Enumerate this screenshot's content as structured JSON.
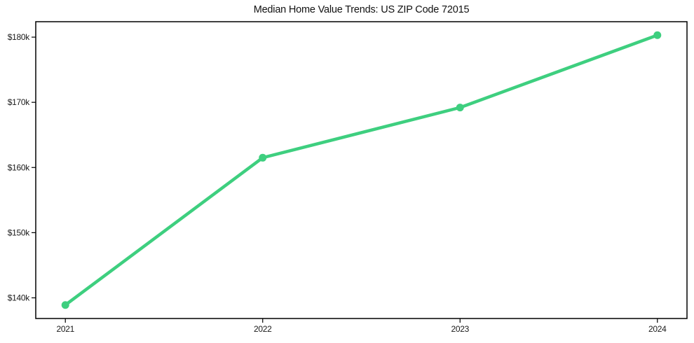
{
  "chart_data": {
    "type": "line",
    "title": "Median Home Value Trends: US ZIP Code 72015",
    "xlabel": "",
    "ylabel": "",
    "x": [
      2021,
      2022,
      2023,
      2024
    ],
    "x_tick_labels": [
      "2021",
      "2022",
      "2023",
      "2024"
    ],
    "series": [
      {
        "name": "median-home-value",
        "values": [
          138900,
          161500,
          169200,
          180300
        ],
        "color": "#3ecf7f",
        "marker": "circle"
      }
    ],
    "y_ticks": [
      {
        "value": 140000,
        "label": "$140k"
      },
      {
        "value": 150000,
        "label": "$150k"
      },
      {
        "value": 160000,
        "label": "$160k"
      },
      {
        "value": 170000,
        "label": "$170k"
      },
      {
        "value": 180000,
        "label": "$180k"
      }
    ],
    "xlim": [
      2020.85,
      2024.15
    ],
    "ylim": [
      136830,
      182370
    ],
    "grid": false,
    "legend": "none",
    "axis_color": "#000000",
    "text_color": "#1a1a1a",
    "background": "#ffffff"
  }
}
